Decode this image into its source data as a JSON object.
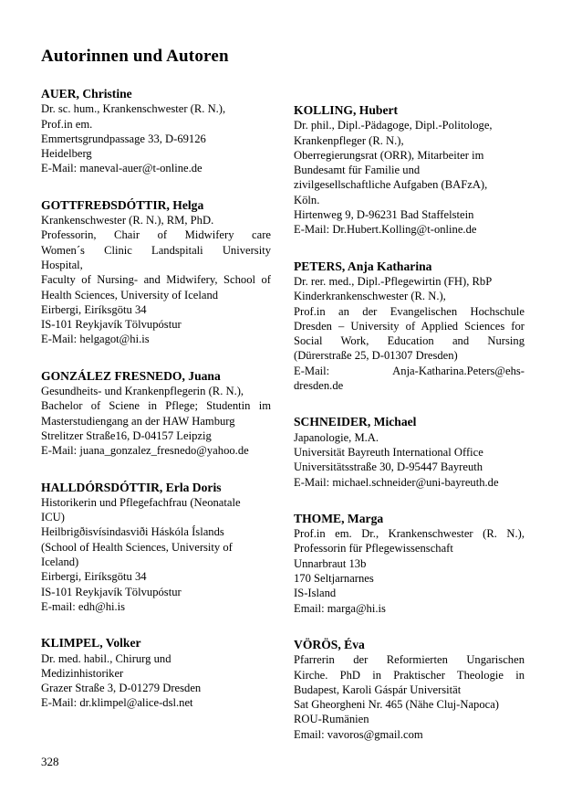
{
  "page": {
    "title": "Autorinnen und Autoren",
    "page_number": "328"
  },
  "columns": {
    "left": [
      {
        "name": "AUER, Christine",
        "lines": [
          {
            "t": "Dr. sc. hum., Krankenschwester (R. N.),",
            "j": false
          },
          {
            "t": "Prof.in em.",
            "j": false
          },
          {
            "t": "Emmertsgrundpassage 33, D-69126",
            "j": false
          },
          {
            "t": "Heidelberg",
            "j": false
          },
          {
            "t": "E-Mail: maneval-auer@t-online.de",
            "j": false
          }
        ]
      },
      {
        "name": "GOTTFREÐSDÓTTIR, Helga",
        "lines": [
          {
            "t": "Krankenschwester (R. N.), RM, PhD.",
            "j": false
          },
          {
            "t": "Professorin, Chair of Midwifery care",
            "j": true
          },
          {
            "t": "Women´s Clinic Landspitali University",
            "j": true
          },
          {
            "t": "Hospital,",
            "j": false
          },
          {
            "t": "Faculty of Nursing- and Midwifery, School of",
            "j": true
          },
          {
            "t": "Health Sciences, University of Iceland",
            "j": false
          },
          {
            "t": "Eirbergi, Eiríksgötu 34",
            "j": false
          },
          {
            "t": "IS-101 Reykjavík Tölvupóstur",
            "j": false
          },
          {
            "t": "E-Mail: helgagot@hi.is",
            "j": false
          }
        ]
      },
      {
        "name": "GONZÁLEZ FRESNEDO, Juana",
        "lines": [
          {
            "t": "Gesundheits- und Krankenpflegerin (R. N.),",
            "j": false
          },
          {
            "t": "Bachelor of Sciene in Pflege; Studentin im",
            "j": true
          },
          {
            "t": "Masterstudiengang an der HAW Hamburg",
            "j": false
          },
          {
            "t": "Strelitzer Straße16, D-04157 Leipzig",
            "j": false
          },
          {
            "t": "E-Mail: juana_gonzalez_fresnedo@yahoo.de",
            "j": false
          }
        ]
      },
      {
        "name": "HALLDÓRSDÓTTIR, Erla Doris",
        "lines": [
          {
            "t": "Historikerin und Pflegefachfrau (Neonatale",
            "j": false
          },
          {
            "t": "ICU)",
            "j": false
          },
          {
            "t": "Heilbrigðisvísindasviði Háskóla Íslands",
            "j": false
          },
          {
            "t": "(School of Health Sciences, University of",
            "j": false
          },
          {
            "t": "Iceland)",
            "j": false
          },
          {
            "t": "Eirbergi, Eiríksgötu 34",
            "j": false
          },
          {
            "t": "IS-101 Reykjavík Tölvupóstur",
            "j": false
          },
          {
            "t": "E-mail: edh@hi.is",
            "j": false
          }
        ]
      },
      {
        "name": "KLIMPEL, Volker",
        "lines": [
          {
            "t": "Dr. med. habil., Chirurg und",
            "j": false
          },
          {
            "t": "Medizinhistoriker",
            "j": false
          },
          {
            "t": "Grazer Straße 3, D-01279 Dresden",
            "j": false
          },
          {
            "t": "E-Mail: dr.klimpel@alice-dsl.net",
            "j": false
          }
        ]
      }
    ],
    "right": [
      {
        "name": "KOLLING, Hubert",
        "lines": [
          {
            "t": "Dr. phil., Dipl.-Pädagoge, Dipl.-Politologe,",
            "j": false
          },
          {
            "t": "Krankenpfleger (R. N.),",
            "j": false
          },
          {
            "t": "Oberregierungsrat (ORR), Mitarbeiter im",
            "j": false
          },
          {
            "t": "Bundesamt für Familie und",
            "j": false
          },
          {
            "t": "zivilgesellschaftliche Aufgaben (BAFzA),",
            "j": false
          },
          {
            "t": "Köln.",
            "j": false
          },
          {
            "t": "Hirtenweg 9, D-96231 Bad Staffelstein",
            "j": false
          },
          {
            "t": "E-Mail: Dr.Hubert.Kolling@t-online.de",
            "j": false
          }
        ]
      },
      {
        "name": "PETERS, Anja Katharina",
        "lines": [
          {
            "t": "Dr. rer. med., Dipl.-Pflegewirtin (FH), RbP",
            "j": false
          },
          {
            "t": "Kinderkrankenschwester (R. N.),",
            "j": false
          },
          {
            "t": "Prof.in an der Evangelischen Hochschule",
            "j": true
          },
          {
            "t": "Dresden – University of Applied Sciences for",
            "j": true
          },
          {
            "t": "Social Work, Education and Nursing",
            "j": true
          },
          {
            "t": "(Dürerstraße 25, D-01307 Dresden)",
            "j": false
          },
          {
            "t": "E-Mail: Anja-Katharina.Peters@ehs-",
            "j": true
          },
          {
            "t": "dresden.de",
            "j": false
          }
        ]
      },
      {
        "name": "SCHNEIDER, Michael",
        "lines": [
          {
            "t": "Japanologie, M.A.",
            "j": false
          },
          {
            "t": "Universität Bayreuth International Office",
            "j": false
          },
          {
            "t": "Universitätsstraße 30, D-95447 Bayreuth",
            "j": false
          },
          {
            "t": "E-Mail: michael.schneider@uni-bayreuth.de",
            "j": false
          }
        ]
      },
      {
        "name": "THOME, Marga",
        "lines": [
          {
            "t": "Prof.in em. Dr., Krankenschwester (R. N.),",
            "j": true
          },
          {
            "t": "Professorin für Pflegewissenschaft",
            "j": false
          },
          {
            "t": "Unnarbraut 13b",
            "j": false
          },
          {
            "t": "170 Seltjarnarnes",
            "j": false
          },
          {
            "t": "IS-Island",
            "j": false
          },
          {
            "t": "Email: marga@hi.is",
            "j": false
          }
        ]
      },
      {
        "name": "VÖRÖS, Éva",
        "lines": [
          {
            "t": "Pfarrerin der Reformierten Ungarischen",
            "j": true
          },
          {
            "t": "Kirche. PhD in Praktischer Theologie in",
            "j": true
          },
          {
            "t": "Budapest, Karoli Gáspár Universität",
            "j": false
          },
          {
            "t": "Sat Gheorgheni Nr. 465 (Nähe Cluj-Napoca)",
            "j": false
          },
          {
            "t": "ROU-Rumänien",
            "j": false
          },
          {
            "t": "Email: vavoros@gmail.com",
            "j": false
          }
        ]
      }
    ]
  }
}
